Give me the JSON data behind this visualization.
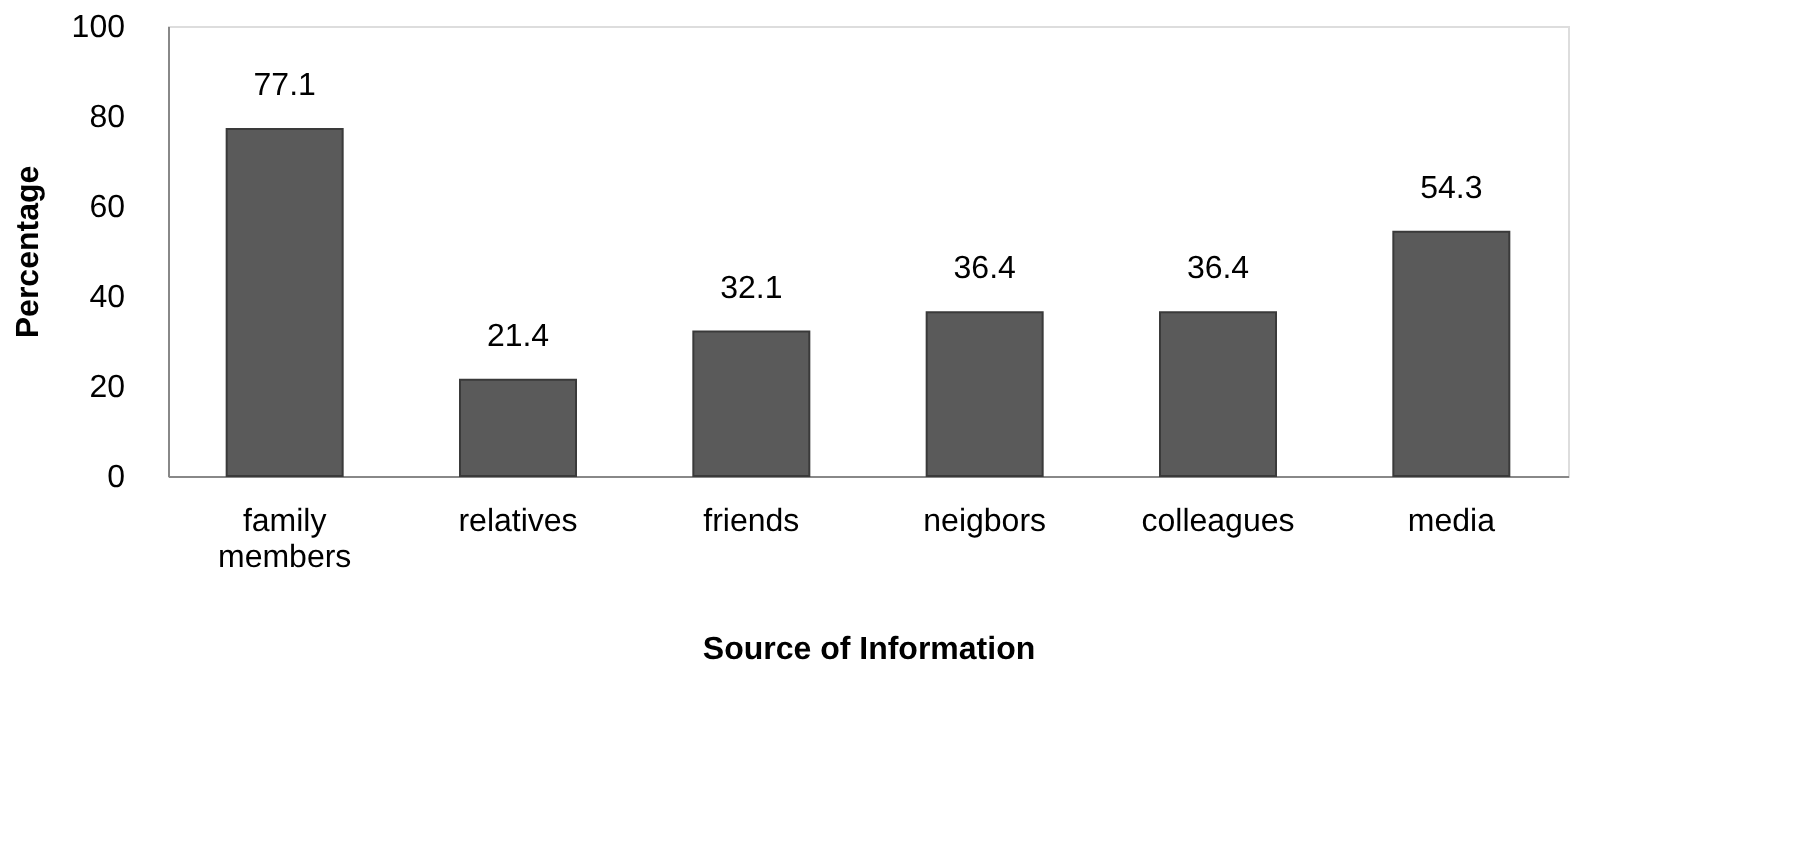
{
  "chart_data": {
    "type": "bar",
    "xlabel": "Source of Information",
    "ylabel": "Percentage",
    "categories": [
      "family members",
      "relatives",
      "friends",
      "neigbors",
      "colleagues",
      "media"
    ],
    "values": [
      77.1,
      21.4,
      32.1,
      36.4,
      36.4,
      54.3
    ],
    "color": "#5a5a5a",
    "ylim": [
      0,
      100
    ],
    "yticks": [
      0,
      20,
      40,
      60,
      80,
      100
    ],
    "grid": false,
    "data_labels": true
  }
}
